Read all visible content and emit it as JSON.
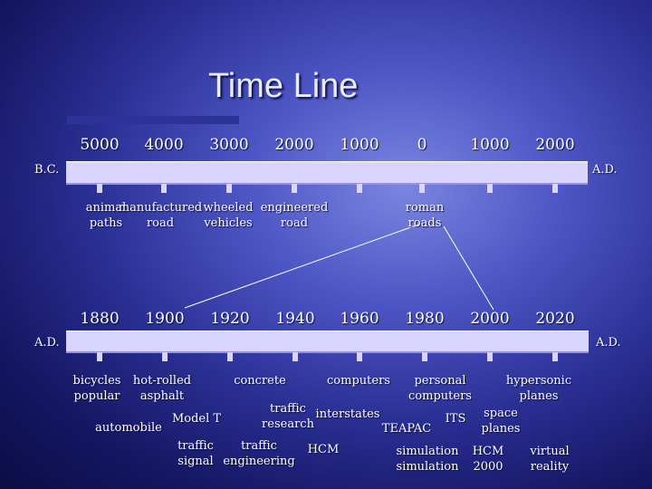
{
  "title": "Time Line",
  "top_timeline": {
    "ticks": [
      "5000",
      "4000",
      "3000",
      "2000",
      "1000",
      "0",
      "1000",
      "2000"
    ],
    "left_era": "B.C.",
    "right_era": "A.D.",
    "events": [
      {
        "lines": [
          "animal",
          "paths"
        ]
      },
      {
        "lines": [
          "manufactured",
          "road"
        ]
      },
      {
        "lines": [
          "wheeled",
          "vehicles"
        ]
      },
      {
        "lines": [
          "engineered",
          "road"
        ]
      },
      {
        "lines": [
          "roman",
          "roads"
        ]
      }
    ]
  },
  "bottom_timeline": {
    "ticks": [
      "1880",
      "1900",
      "1920",
      "1940",
      "1960",
      "1980",
      "2000",
      "2020"
    ],
    "left_era": "A.D.",
    "right_era": "A.D.",
    "events": [
      {
        "lines": [
          "bicycles",
          "popular"
        ]
      },
      {
        "lines": [
          "hot-rolled",
          "asphalt"
        ]
      },
      {
        "lines": [
          "concrete"
        ]
      },
      {
        "lines": [
          "computers"
        ]
      },
      {
        "lines": [
          "personal",
          "computers"
        ]
      },
      {
        "lines": [
          "hypersonic",
          "planes"
        ]
      },
      {
        "lines": [
          "automobile"
        ]
      },
      {
        "lines": [
          "Model T"
        ]
      },
      {
        "lines": [
          "traffic",
          "research"
        ]
      },
      {
        "lines": [
          "interstates"
        ]
      },
      {
        "lines": [
          "ITS"
        ]
      },
      {
        "lines": [
          "TEAPAC"
        ]
      },
      {
        "lines": [
          "space",
          "planes"
        ]
      },
      {
        "lines": [
          "traffic",
          "signal"
        ]
      },
      {
        "lines": [
          "traffic",
          "engineering"
        ]
      },
      {
        "lines": [
          "HCM"
        ]
      },
      {
        "lines": [
          "simulation",
          "simulation"
        ]
      },
      {
        "lines": [
          "HCM",
          "2000"
        ]
      },
      {
        "lines": [
          "virtual",
          "reality"
        ]
      }
    ]
  }
}
